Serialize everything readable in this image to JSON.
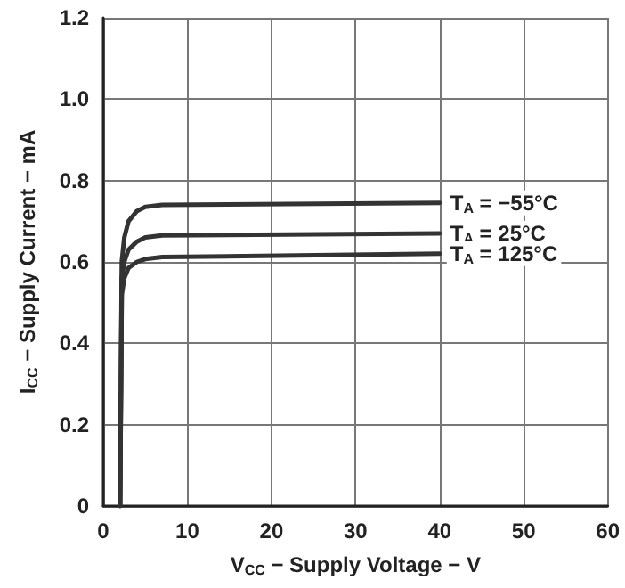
{
  "chart_data": {
    "type": "line",
    "xlabel": "V$_{CC}$ − Supply Voltage − V",
    "ylabel": "I$_{CC}$ − Supply Current − mA",
    "xlim": [
      0,
      60
    ],
    "xticks": [
      0,
      10,
      20,
      30,
      40,
      50,
      60
    ],
    "ylim": [
      0,
      1.2
    ],
    "yticks": [
      0,
      0.2,
      0.4,
      0.6,
      0.8,
      {
        "value": 1,
        "label": "1.0"
      },
      1.2
    ],
    "grid": true,
    "marker": "none",
    "line_style": "solid",
    "series": [
      {
        "name": "T$_{A}$ = −55°C",
        "color": "#333333",
        "x": [
          2,
          2.2,
          2.5,
          3,
          4,
          5,
          7,
          40
        ],
        "values": [
          0,
          0.6,
          0.66,
          0.7,
          0.725,
          0.735,
          0.74,
          0.745
        ]
      },
      {
        "name": "T$_{A}$ = 25°C",
        "color": "#333333",
        "x": [
          2,
          2.2,
          2.5,
          3,
          4,
          5,
          7,
          40
        ],
        "values": [
          0,
          0.56,
          0.6,
          0.63,
          0.65,
          0.66,
          0.665,
          0.67
        ]
      },
      {
        "name": "T$_{A}$ = 125°C",
        "color": "#333333",
        "x": [
          2,
          2.2,
          2.5,
          3,
          4,
          5,
          7,
          40
        ],
        "values": [
          0,
          0.52,
          0.56,
          0.585,
          0.6,
          0.607,
          0.612,
          0.62
        ]
      }
    ]
  }
}
